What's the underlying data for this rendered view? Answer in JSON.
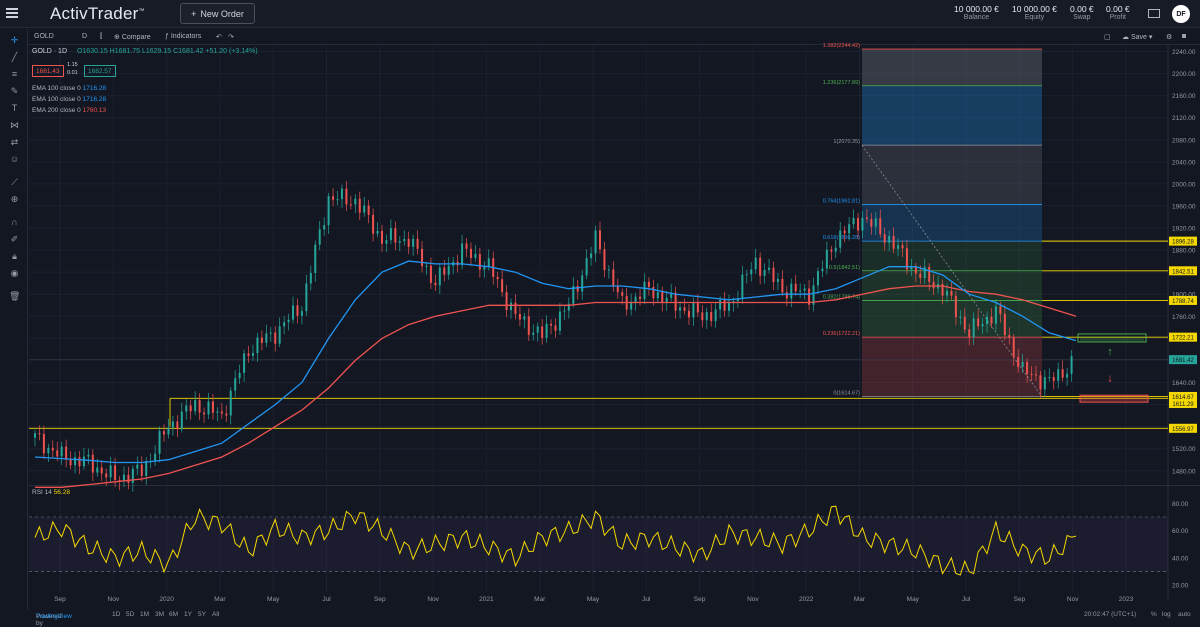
{
  "app": {
    "logo": "ActivTrader",
    "logo_mark": "™",
    "new_order": "New Order"
  },
  "account": [
    {
      "value": "10 000.00 €",
      "label": "Balance"
    },
    {
      "value": "10 000.00 €",
      "label": "Equity"
    },
    {
      "value": "0.00 €",
      "label": "Swap"
    },
    {
      "value": "0.00 €",
      "label": "Profit"
    }
  ],
  "user_initials": "DF",
  "toolbar": {
    "symbol": "GOLD",
    "interval": "D",
    "compare": "Compare",
    "indicators": "Indicators",
    "save": "Save"
  },
  "legend": {
    "title": "GOLD · 1D",
    "ohlc": "O1630.15 H1681.75 L1629.15 C1681.42 +51.20 (+3.14%)",
    "sell": "1681.43",
    "buy": "1682.57",
    "spread_top": "1.15",
    "spread_bottom": "0.01"
  },
  "emas": [
    {
      "label": "EMA 100 close 0",
      "value": "1716.28",
      "color": "#2196f3"
    },
    {
      "label": "EMA 100 close 0",
      "value": "1716.28",
      "color": "#2196f3"
    },
    {
      "label": "EMA 200 close 0",
      "value": "1760.13",
      "color": "#ef5350"
    }
  ],
  "rsi": {
    "label": "RSI 14",
    "value": "56.28"
  },
  "chart_data": {
    "type": "line",
    "series_name": "GOLD",
    "x": [
      "2019-08",
      "2019-09",
      "2019-10",
      "2019-11",
      "2019-12",
      "2020-01",
      "2020-02",
      "2020-03",
      "2020-04",
      "2020-05",
      "2020-06",
      "2020-07",
      "2020-08",
      "2020-09",
      "2020-10",
      "2020-11",
      "2020-12",
      "2021-01",
      "2021-02",
      "2021-03",
      "2021-04",
      "2021-05",
      "2021-06",
      "2021-07",
      "2021-08",
      "2021-09",
      "2021-10",
      "2021-11",
      "2021-12",
      "2022-01",
      "2022-02",
      "2022-03",
      "2022-04",
      "2022-05",
      "2022-06",
      "2022-07",
      "2022-08",
      "2022-09",
      "2022-10",
      "2022-11"
    ],
    "values": [
      1540,
      1505,
      1495,
      1465,
      1480,
      1560,
      1600,
      1580,
      1700,
      1730,
      1780,
      1975,
      1970,
      1900,
      1900,
      1820,
      1880,
      1850,
      1760,
      1725,
      1780,
      1900,
      1780,
      1810,
      1780,
      1760,
      1780,
      1860,
      1810,
      1800,
      1900,
      1940,
      1900,
      1840,
      1810,
      1730,
      1770,
      1660,
      1640,
      1681
    ],
    "ema100": [
      1505,
      1502,
      1499,
      1495,
      1495,
      1500,
      1515,
      1530,
      1565,
      1600,
      1640,
      1720,
      1790,
      1840,
      1860,
      1855,
      1855,
      1850,
      1840,
      1820,
      1810,
      1815,
      1815,
      1810,
      1800,
      1795,
      1790,
      1795,
      1800,
      1800,
      1810,
      1830,
      1850,
      1850,
      1835,
      1800,
      1785,
      1760,
      1730,
      1716
    ],
    "ema200": [
      1450,
      1450,
      1455,
      1460,
      1465,
      1475,
      1490,
      1505,
      1530,
      1560,
      1590,
      1630,
      1680,
      1720,
      1745,
      1760,
      1770,
      1780,
      1780,
      1780,
      1780,
      1785,
      1785,
      1785,
      1785,
      1785,
      1785,
      1785,
      1785,
      1785,
      1790,
      1800,
      1810,
      1815,
      1815,
      1805,
      1800,
      1790,
      1775,
      1760
    ],
    "x_ticks": [
      "Sep",
      "Nov",
      "2020",
      "Mar",
      "May",
      "Jul",
      "Sep",
      "Nov",
      "2021",
      "Mar",
      "May",
      "Jul",
      "Sep",
      "Nov",
      "2022",
      "Mar",
      "May",
      "Jul",
      "Sep",
      "Nov",
      "2023"
    ],
    "y_ticks": [
      1480,
      1520,
      1560,
      1600,
      1640,
      1680,
      1720,
      1760,
      1800,
      1840,
      1880,
      1920,
      1960,
      2000,
      2040,
      2080,
      2120,
      2160,
      2200,
      2240
    ],
    "ylim": [
      1456,
      2250
    ],
    "fib_levels": [
      {
        "ratio": "1.382",
        "price": 2244.42,
        "label": "1.382(2244.42)"
      },
      {
        "ratio": "1.236",
        "price": 2177.89,
        "label": "1.236(2177.89)"
      },
      {
        "ratio": "1",
        "price": 2070.35,
        "label": "1(2070.35)"
      },
      {
        "ratio": "0.764",
        "price": 1962.81,
        "label": "0.764(1962.81)"
      },
      {
        "ratio": "0.618",
        "price": 1896.28,
        "label": "0.618(1896.28)"
      },
      {
        "ratio": "0.5",
        "price": 1842.51,
        "label": "0.5(1842.51)"
      },
      {
        "ratio": "0.382",
        "price": 1788.74,
        "label": "0.382(1788.74)"
      },
      {
        "ratio": "0.236",
        "price": 1722.21,
        "label": "0.236(1722.21)"
      },
      {
        "ratio": "0",
        "price": 1614.67,
        "label": "0(1614.67)"
      }
    ],
    "price_tags": [
      {
        "price": 1896.28,
        "label": "1896.28",
        "color": "#f5d800"
      },
      {
        "price": 1842.51,
        "label": "1842.51",
        "color": "#f5d800"
      },
      {
        "price": 1788.74,
        "label": "1788.74",
        "color": "#f5d800"
      },
      {
        "price": 1722.21,
        "label": "1722.21",
        "color": "#f5d800"
      },
      {
        "price": 1681.42,
        "label": "1681.42",
        "color": "#26a69a"
      },
      {
        "price": 1614.67,
        "label": "1614.67",
        "color": "#f5d800"
      },
      {
        "price": 1611.29,
        "label": "1611.29",
        "color": "#f5d800"
      },
      {
        "price": 1556.97,
        "label": "1556.97",
        "color": "#f5d800"
      }
    ],
    "horizontal_lines": [
      1611.29,
      1556.97
    ],
    "rsi_values": [
      55,
      62,
      48,
      40,
      45,
      35,
      70,
      65,
      45,
      62,
      55,
      60,
      72,
      60,
      45,
      50,
      55,
      48,
      40,
      55,
      60,
      70,
      50,
      55,
      48,
      42,
      58,
      55,
      50,
      60,
      75,
      55,
      50,
      45,
      35,
      30,
      60,
      45,
      40,
      56
    ],
    "rsi_levels": [
      70,
      30
    ],
    "rsi_ticks": [
      80,
      60,
      40,
      20
    ],
    "rsi_ylim": [
      15,
      92
    ]
  },
  "bottom": {
    "ranges": [
      "1D",
      "5D",
      "1M",
      "3M",
      "6M",
      "1Y",
      "5Y",
      "All"
    ],
    "powered": "Powered by",
    "brand": "TradingView",
    "time": "20:02:47 (UTC+1)",
    "pct": "%",
    "log": "log",
    "auto": "auto"
  }
}
